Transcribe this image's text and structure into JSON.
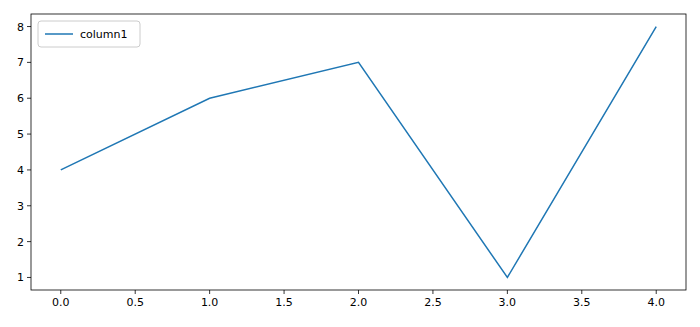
{
  "chart_data": {
    "type": "line",
    "x": [
      0,
      1,
      2,
      3,
      4
    ],
    "series": [
      {
        "name": "column1",
        "color": "#1f77b4",
        "values": [
          4,
          6,
          7,
          1,
          8
        ]
      }
    ],
    "xlim": [
      -0.2,
      4.2
    ],
    "xticks": [
      {
        "value": 0,
        "label": "0.0"
      },
      0.5,
      {
        "value": 1,
        "label": "1.0"
      },
      1.5,
      {
        "value": 2,
        "label": "2.0"
      },
      2.5,
      {
        "value": 3,
        "label": "3.0"
      },
      3.5,
      {
        "value": 4,
        "label": "4.0"
      }
    ],
    "ylim": [
      0.65,
      8.35
    ],
    "yticks": [
      1,
      2,
      3,
      4,
      5,
      6,
      7,
      8
    ],
    "grid": false,
    "legend": "upper-left"
  }
}
